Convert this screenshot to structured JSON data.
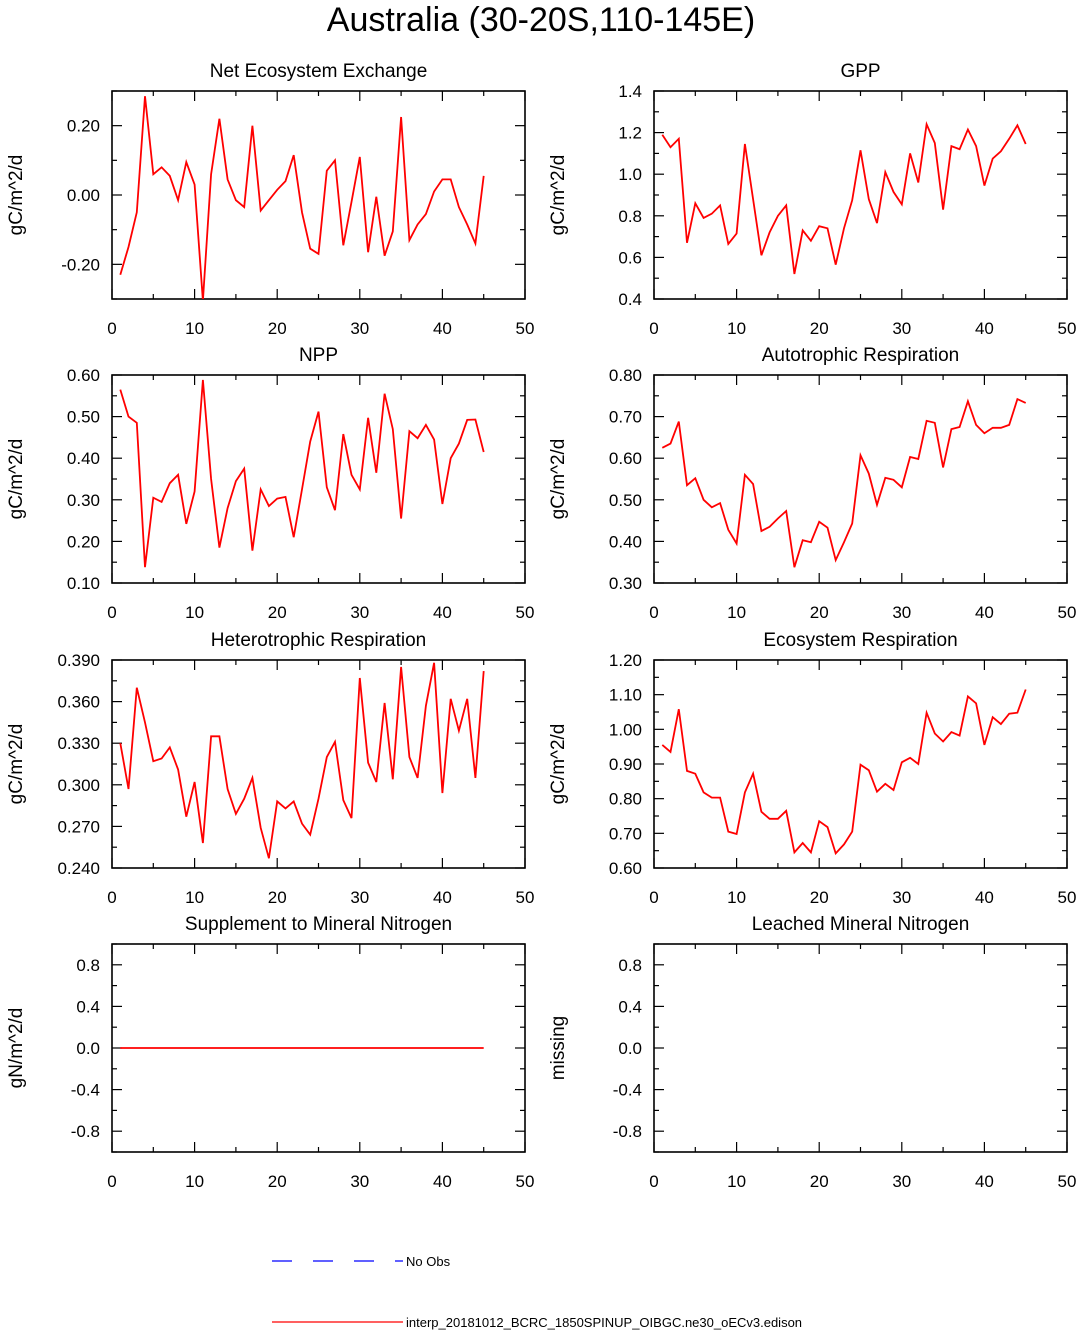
{
  "title": "Australia (30-20S,110-145E)",
  "legend": {
    "obs_label": "No Obs",
    "obs_color": "#0000ff",
    "model_label": "interp_20181012_BCRC_1850SPINUP_OIBGC.ne30_oECv3.edison",
    "model_color": "#ff0000"
  },
  "chart_data": [
    {
      "type": "line",
      "title": "Net Ecosystem Exchange",
      "ylabel": "gC/m^2/d",
      "xlim": [
        0,
        50
      ],
      "ylim": [
        -0.3,
        0.3
      ],
      "xticks": [
        0,
        10,
        20,
        30,
        40,
        50
      ],
      "yticks": [
        -0.2,
        0.0,
        0.2
      ],
      "ytick_labels": [
        "-0.20",
        "0.00",
        "0.20"
      ],
      "x": [
        1,
        2,
        3,
        4,
        5,
        6,
        7,
        8,
        9,
        10,
        11,
        12,
        13,
        14,
        15,
        16,
        17,
        18,
        19,
        20,
        21,
        22,
        23,
        24,
        25,
        26,
        27,
        28,
        29,
        30,
        31,
        32,
        33,
        34,
        35,
        36,
        37,
        38,
        39,
        40,
        41,
        42,
        43,
        44,
        45
      ],
      "series": [
        {
          "values": [
            -0.23,
            -0.15,
            -0.05,
            0.285,
            0.06,
            0.08,
            0.055,
            -0.015,
            0.095,
            0.03,
            -0.305,
            0.06,
            0.22,
            0.045,
            -0.015,
            -0.035,
            0.2,
            -0.045,
            -0.015,
            0.015,
            0.04,
            0.115,
            -0.05,
            -0.155,
            -0.17,
            0.07,
            0.1,
            -0.145,
            -0.02,
            0.11,
            -0.165,
            -0.005,
            -0.175,
            -0.105,
            0.225,
            -0.13,
            -0.085,
            -0.055,
            0.01,
            0.045,
            0.045,
            -0.035,
            -0.085,
            -0.14,
            0.055
          ]
        }
      ]
    },
    {
      "type": "line",
      "title": "GPP",
      "ylabel": "gC/m^2/d",
      "xlim": [
        0,
        50
      ],
      "ylim": [
        0.4,
        1.4
      ],
      "xticks": [
        0,
        10,
        20,
        30,
        40,
        50
      ],
      "yticks": [
        0.4,
        0.6,
        0.8,
        1.0,
        1.2,
        1.4
      ],
      "ytick_labels": [
        "0.4",
        "0.6",
        "0.8",
        "1.0",
        "1.2",
        "1.4"
      ],
      "x": [
        1,
        2,
        3,
        4,
        5,
        6,
        7,
        8,
        9,
        10,
        11,
        12,
        13,
        14,
        15,
        16,
        17,
        18,
        19,
        20,
        21,
        22,
        23,
        24,
        25,
        26,
        27,
        28,
        29,
        30,
        31,
        32,
        33,
        34,
        35,
        36,
        37,
        38,
        39,
        40,
        41,
        42,
        43,
        44,
        45
      ],
      "series": [
        {
          "values": [
            1.19,
            1.13,
            1.17,
            0.67,
            0.86,
            0.79,
            0.81,
            0.85,
            0.665,
            0.715,
            1.145,
            0.88,
            0.61,
            0.72,
            0.8,
            0.85,
            0.52,
            0.73,
            0.68,
            0.75,
            0.74,
            0.565,
            0.74,
            0.875,
            1.115,
            0.88,
            0.765,
            1.01,
            0.915,
            0.855,
            1.1,
            0.96,
            1.24,
            1.15,
            0.83,
            1.135,
            1.12,
            1.215,
            1.135,
            0.945,
            1.075,
            1.11,
            1.17,
            1.235,
            1.145
          ]
        }
      ]
    },
    {
      "type": "line",
      "title": "NPP",
      "ylabel": "gC/m^2/d",
      "xlim": [
        0,
        50
      ],
      "ylim": [
        0.1,
        0.6
      ],
      "xticks": [
        0,
        10,
        20,
        30,
        40,
        50
      ],
      "yticks": [
        0.1,
        0.2,
        0.3,
        0.4,
        0.5,
        0.6
      ],
      "ytick_labels": [
        "0.10",
        "0.20",
        "0.30",
        "0.40",
        "0.50",
        "0.60"
      ],
      "x": [
        1,
        2,
        3,
        4,
        5,
        6,
        7,
        8,
        9,
        10,
        11,
        12,
        13,
        14,
        15,
        16,
        17,
        18,
        19,
        20,
        21,
        22,
        23,
        24,
        25,
        26,
        27,
        28,
        29,
        30,
        31,
        32,
        33,
        34,
        35,
        36,
        37,
        38,
        39,
        40,
        41,
        42,
        43,
        44,
        45
      ],
      "series": [
        {
          "values": [
            0.565,
            0.5,
            0.485,
            0.138,
            0.305,
            0.295,
            0.34,
            0.36,
            0.242,
            0.32,
            0.588,
            0.35,
            0.185,
            0.28,
            0.345,
            0.375,
            0.178,
            0.325,
            0.285,
            0.303,
            0.307,
            0.21,
            0.325,
            0.44,
            0.512,
            0.33,
            0.275,
            0.458,
            0.36,
            0.325,
            0.497,
            0.365,
            0.555,
            0.47,
            0.255,
            0.465,
            0.448,
            0.48,
            0.445,
            0.29,
            0.4,
            0.435,
            0.492,
            0.493,
            0.415
          ]
        }
      ]
    },
    {
      "type": "line",
      "title": "Autotrophic Respiration",
      "ylabel": "gC/m^2/d",
      "xlim": [
        0,
        50
      ],
      "ylim": [
        0.3,
        0.8
      ],
      "xticks": [
        0,
        10,
        20,
        30,
        40,
        50
      ],
      "yticks": [
        0.3,
        0.4,
        0.5,
        0.6,
        0.7,
        0.8
      ],
      "ytick_labels": [
        "0.30",
        "0.40",
        "0.50",
        "0.60",
        "0.70",
        "0.80"
      ],
      "x": [
        1,
        2,
        3,
        4,
        5,
        6,
        7,
        8,
        9,
        10,
        11,
        12,
        13,
        14,
        15,
        16,
        17,
        18,
        19,
        20,
        21,
        22,
        23,
        24,
        25,
        26,
        27,
        28,
        29,
        30,
        31,
        32,
        33,
        34,
        35,
        36,
        37,
        38,
        39,
        40,
        41,
        42,
        43,
        44,
        45
      ],
      "series": [
        {
          "values": [
            0.625,
            0.635,
            0.688,
            0.535,
            0.552,
            0.5,
            0.482,
            0.492,
            0.428,
            0.395,
            0.56,
            0.538,
            0.425,
            0.435,
            0.455,
            0.473,
            0.338,
            0.403,
            0.398,
            0.447,
            0.433,
            0.355,
            0.398,
            0.443,
            0.607,
            0.563,
            0.488,
            0.553,
            0.548,
            0.53,
            0.603,
            0.598,
            0.69,
            0.685,
            0.578,
            0.67,
            0.675,
            0.737,
            0.68,
            0.66,
            0.673,
            0.673,
            0.68,
            0.742,
            0.733
          ]
        }
      ]
    },
    {
      "type": "line",
      "title": "Heterotrophic Respiration",
      "ylabel": "gC/m^2/d",
      "xlim": [
        0,
        50
      ],
      "ylim": [
        0.24,
        0.39
      ],
      "xticks": [
        0,
        10,
        20,
        30,
        40,
        50
      ],
      "yticks": [
        0.24,
        0.27,
        0.3,
        0.33,
        0.36,
        0.39
      ],
      "ytick_labels": [
        "0.240",
        "0.270",
        "0.300",
        "0.330",
        "0.360",
        "0.390"
      ],
      "x": [
        1,
        2,
        3,
        4,
        5,
        6,
        7,
        8,
        9,
        10,
        11,
        12,
        13,
        14,
        15,
        16,
        17,
        18,
        19,
        20,
        21,
        22,
        23,
        24,
        25,
        26,
        27,
        28,
        29,
        30,
        31,
        32,
        33,
        34,
        35,
        36,
        37,
        38,
        39,
        40,
        41,
        42,
        43,
        44,
        45
      ],
      "series": [
        {
          "values": [
            0.33,
            0.297,
            0.37,
            0.345,
            0.317,
            0.319,
            0.327,
            0.311,
            0.277,
            0.302,
            0.258,
            0.335,
            0.335,
            0.297,
            0.279,
            0.29,
            0.305,
            0.269,
            0.247,
            0.288,
            0.283,
            0.288,
            0.272,
            0.264,
            0.29,
            0.32,
            0.331,
            0.289,
            0.276,
            0.377,
            0.316,
            0.302,
            0.359,
            0.304,
            0.385,
            0.32,
            0.305,
            0.357,
            0.388,
            0.294,
            0.362,
            0.339,
            0.362,
            0.305,
            0.382
          ]
        }
      ]
    },
    {
      "type": "line",
      "title": "Ecosystem Respiration",
      "ylabel": "gC/m^2/d",
      "xlim": [
        0,
        50
      ],
      "ylim": [
        0.6,
        1.2
      ],
      "xticks": [
        0,
        10,
        20,
        30,
        40,
        50
      ],
      "yticks": [
        0.6,
        0.7,
        0.8,
        0.9,
        1.0,
        1.1,
        1.2
      ],
      "ytick_labels": [
        "0.60",
        "0.70",
        "0.80",
        "0.90",
        "1.00",
        "1.10",
        "1.20"
      ],
      "x": [
        1,
        2,
        3,
        4,
        5,
        6,
        7,
        8,
        9,
        10,
        11,
        12,
        13,
        14,
        15,
        16,
        17,
        18,
        19,
        20,
        21,
        22,
        23,
        24,
        25,
        26,
        27,
        28,
        29,
        30,
        31,
        32,
        33,
        34,
        35,
        36,
        37,
        38,
        39,
        40,
        41,
        42,
        43,
        44,
        45
      ],
      "series": [
        {
          "values": [
            0.955,
            0.935,
            1.058,
            0.88,
            0.872,
            0.818,
            0.803,
            0.803,
            0.705,
            0.698,
            0.818,
            0.872,
            0.762,
            0.742,
            0.742,
            0.765,
            0.645,
            0.672,
            0.645,
            0.735,
            0.718,
            0.642,
            0.668,
            0.705,
            0.898,
            0.882,
            0.82,
            0.843,
            0.825,
            0.905,
            0.918,
            0.9,
            1.048,
            0.988,
            0.965,
            0.992,
            0.982,
            1.095,
            1.075,
            0.955,
            1.035,
            1.015,
            1.045,
            1.048,
            1.115
          ]
        }
      ]
    },
    {
      "type": "line",
      "title": "Supplement to Mineral Nitrogen",
      "ylabel": "gN/m^2/d",
      "xlim": [
        0,
        50
      ],
      "ylim": [
        -1.0,
        1.0
      ],
      "xticks": [
        0,
        10,
        20,
        30,
        40,
        50
      ],
      "yticks": [
        -0.8,
        -0.4,
        0.0,
        0.4,
        0.8
      ],
      "ytick_labels": [
        "-0.8",
        "-0.4",
        "0.0",
        "0.4",
        "0.8"
      ],
      "x": [
        1,
        2,
        3,
        4,
        5,
        6,
        7,
        8,
        9,
        10,
        11,
        12,
        13,
        14,
        15,
        16,
        17,
        18,
        19,
        20,
        21,
        22,
        23,
        24,
        25,
        26,
        27,
        28,
        29,
        30,
        31,
        32,
        33,
        34,
        35,
        36,
        37,
        38,
        39,
        40,
        41,
        42,
        43,
        44,
        45
      ],
      "series": [
        {
          "values": [
            0,
            0,
            0,
            0,
            0,
            0,
            0,
            0,
            0,
            0,
            0,
            0,
            0,
            0,
            0,
            0,
            0,
            0,
            0,
            0,
            0,
            0,
            0,
            0,
            0,
            0,
            0,
            0,
            0,
            0,
            0,
            0,
            0,
            0,
            0,
            0,
            0,
            0,
            0,
            0,
            0,
            0,
            0,
            0,
            0
          ]
        }
      ]
    },
    {
      "type": "line",
      "title": "Leached Mineral Nitrogen",
      "ylabel": "missing",
      "xlim": [
        0,
        50
      ],
      "ylim": [
        -1.0,
        1.0
      ],
      "xticks": [
        0,
        10,
        20,
        30,
        40,
        50
      ],
      "yticks": [
        -0.8,
        -0.4,
        0.0,
        0.4,
        0.8
      ],
      "ytick_labels": [
        "-0.8",
        "-0.4",
        "0.0",
        "0.4",
        "0.8"
      ],
      "x": [],
      "series": []
    }
  ]
}
